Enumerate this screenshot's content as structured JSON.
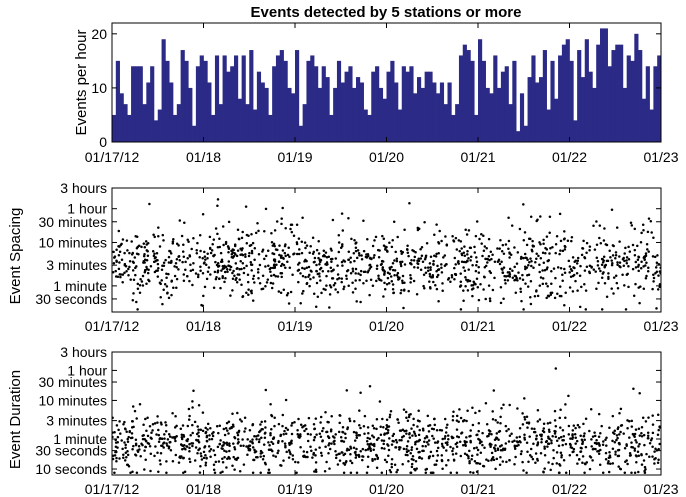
{
  "colors": {
    "bar": "#2B2A86",
    "dot": "#000000",
    "axis": "#000000"
  },
  "chart_data": [
    {
      "type": "bar",
      "title": "Events detected by 5 stations or more",
      "xlabel": "",
      "ylabel": "Events per hour",
      "x_tick_labels": [
        "01/17/12",
        "01/18",
        "01/19",
        "01/20",
        "01/21",
        "01/22",
        "01/23"
      ],
      "xlim": [
        0,
        144
      ],
      "ylim": [
        0,
        22
      ],
      "y_ticks": [
        0,
        10,
        20
      ],
      "y_tick_labels": [
        "0",
        "10",
        "20"
      ],
      "grid": false,
      "note": "hourly bins from 01/17/12 00:00 to 01/23 00:00, x in hours",
      "values": [
        5,
        15,
        9,
        7,
        5,
        14,
        14,
        14,
        7,
        11,
        14,
        4,
        6,
        19,
        15,
        11,
        5,
        7,
        17,
        15,
        10,
        3,
        14,
        16,
        15,
        11,
        5,
        16,
        7,
        16,
        13,
        14,
        16,
        8,
        16,
        7,
        17,
        6,
        13,
        11,
        10,
        5,
        14,
        16,
        17,
        15,
        10,
        9,
        17,
        3,
        7,
        15,
        16,
        14,
        10,
        14,
        12,
        5,
        10,
        15,
        11,
        13,
        14,
        10,
        12,
        11,
        6,
        5,
        13,
        14,
        10,
        8,
        13,
        15,
        11,
        6,
        14,
        13,
        14,
        9,
        12,
        10,
        13,
        13,
        11,
        9,
        11,
        7,
        11,
        5,
        7,
        16,
        18,
        17,
        15,
        5,
        19,
        15,
        10,
        9,
        16,
        10,
        13,
        14,
        7,
        15,
        2,
        9,
        3,
        12,
        16,
        11,
        12,
        17,
        6,
        15,
        8,
        16,
        18,
        19,
        15,
        4,
        17,
        12,
        19,
        13,
        10,
        18,
        21,
        21,
        14,
        17,
        18,
        18,
        10,
        16,
        15,
        20,
        17,
        8,
        14,
        6,
        14,
        16
      ]
    },
    {
      "type": "scatter",
      "title": "",
      "xlabel": "",
      "ylabel": "Event Spacing",
      "x_tick_labels": [
        "01/17/12",
        "01/18",
        "01/19",
        "01/20",
        "01/21",
        "01/22",
        "01/23"
      ],
      "xlim": [
        0,
        144
      ],
      "y_scale": "log",
      "y_unit": "seconds",
      "ylim": [
        15,
        10800
      ],
      "y_ticks": [
        30,
        60,
        180,
        600,
        1800,
        3600,
        10800
      ],
      "y_tick_labels": [
        "30 seconds",
        "1 minute",
        "3 minutes",
        "10 minutes",
        "30 minutes",
        "1 hour",
        "3 hours"
      ],
      "grid": false,
      "point_count": 1350,
      "distribution": "log-normal spread, median about 3 minutes, most points between 1 minute and 10 minutes, occasional points near 1 hour"
    },
    {
      "type": "scatter",
      "title": "",
      "xlabel": "",
      "ylabel": "Event Duration",
      "x_tick_labels": [
        "01/17/12",
        "01/18",
        "01/19",
        "01/20",
        "01/21",
        "01/22",
        "01/23"
      ],
      "xlim": [
        0,
        144
      ],
      "y_scale": "log",
      "y_unit": "seconds",
      "ylim": [
        7,
        10800
      ],
      "y_ticks": [
        10,
        30,
        60,
        180,
        600,
        1800,
        3600,
        10800
      ],
      "y_tick_labels": [
        "10 seconds",
        "30 seconds",
        "1 minute",
        "3 minutes",
        "10 minutes",
        "30 minutes",
        "1 hour",
        "3 hours"
      ],
      "grid": false,
      "point_count": 1350,
      "distribution": "log-normal spread, median about 45 seconds, most points between 20 seconds and 3 minutes, rare points up to 1 hour"
    }
  ]
}
